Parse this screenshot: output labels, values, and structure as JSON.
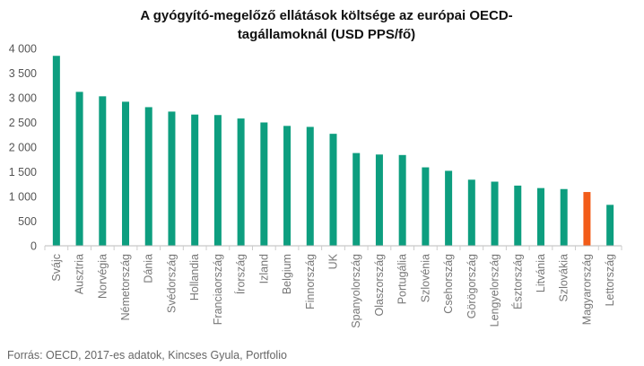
{
  "chart_data": {
    "type": "bar",
    "title_lines": [
      "A gyógyító-megelőző ellátások költsége az európai OECD-",
      "tagállamoknál (USD PPS/fő)"
    ],
    "categories": [
      "Svájc",
      "Ausztria",
      "Norvégia",
      "Németország",
      "Dánia",
      "Svédország",
      "Hollandia",
      "Franciaország",
      "Írország",
      "Izland",
      "Belgium",
      "Finnország",
      "UK",
      "Spanyolország",
      "Olaszország",
      "Portugália",
      "Szlovénia",
      "Csehország",
      "Görögország",
      "Lengyelország",
      "Észtország",
      "Litvánia",
      "Szlovákia",
      "Magyarország",
      "Lettország"
    ],
    "values": [
      3850,
      3120,
      3030,
      2920,
      2810,
      2720,
      2660,
      2650,
      2580,
      2500,
      2430,
      2410,
      2270,
      1880,
      1850,
      1840,
      1590,
      1520,
      1340,
      1300,
      1220,
      1170,
      1150,
      1090,
      830
    ],
    "highlight_category": "Magyarország",
    "ylim": [
      0,
      4000
    ],
    "yticks": [
      0,
      500,
      1000,
      1500,
      2000,
      2500,
      3000,
      3500,
      4000
    ],
    "ytick_labels": [
      "0",
      "500",
      "1 000",
      "1 500",
      "2 000",
      "2 500",
      "3 000",
      "3 500",
      "4 000"
    ],
    "xlabel": "",
    "ylabel": "",
    "grid": false,
    "legend": "none"
  },
  "colors": {
    "bar": "#0d9e7f",
    "highlight": "#f25c19",
    "axis": "#bbbbbb",
    "tick": "#cccccc"
  },
  "source_text": "Forrás: OECD, 2017-es adatok, Kincses Gyula, Portfolio"
}
